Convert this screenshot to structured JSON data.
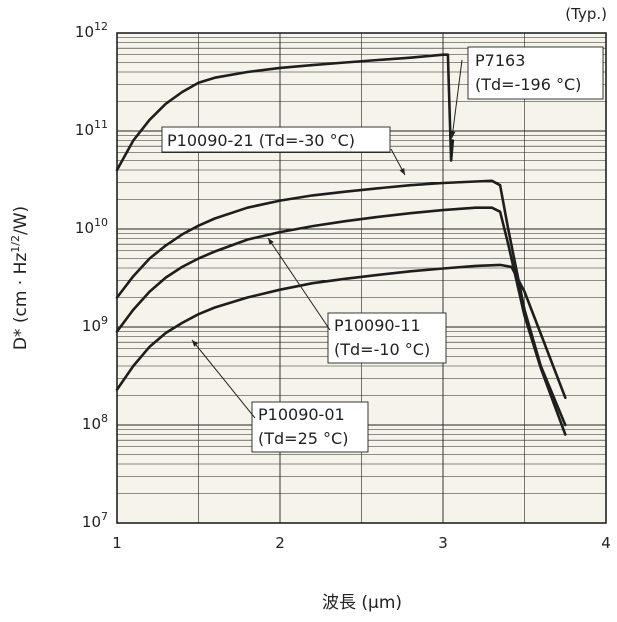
{
  "chart_data": {
    "type": "line",
    "note": "(Typ.)",
    "xlabel": "波長 (μm)",
    "ylabel": "D* (cm · Hz1/2/W)",
    "ylabel_parts": {
      "main": "D* (cm · Hz",
      "sup": "1/2",
      "tail": "/W)"
    },
    "xlim": [
      1,
      4
    ],
    "ylim_exp": [
      7,
      12
    ],
    "y_scale": "log",
    "grid": true,
    "x_ticks": [
      "1",
      "2",
      "3",
      "4"
    ],
    "y_ticks": [
      {
        "base": "10",
        "exp": "12"
      },
      {
        "base": "10",
        "exp": "11"
      },
      {
        "base": "10",
        "exp": "10"
      },
      {
        "base": "10",
        "exp": "9"
      },
      {
        "base": "10",
        "exp": "8"
      },
      {
        "base": "10",
        "exp": "7"
      }
    ],
    "series": [
      {
        "name": "P7163",
        "label_lines": [
          "P7163",
          "(Td=-196 °C)"
        ],
        "points": [
          [
            1.0,
            40000000000.0
          ],
          [
            1.1,
            80000000000.0
          ],
          [
            1.2,
            130000000000.0
          ],
          [
            1.3,
            190000000000.0
          ],
          [
            1.4,
            250000000000.0
          ],
          [
            1.5,
            310000000000.0
          ],
          [
            1.6,
            350000000000.0
          ],
          [
            1.8,
            400000000000.0
          ],
          [
            2.0,
            440000000000.0
          ],
          [
            2.2,
            470000000000.0
          ],
          [
            2.4,
            500000000000.0
          ],
          [
            2.6,
            530000000000.0
          ],
          [
            2.8,
            560000000000.0
          ],
          [
            3.0,
            600000000000.0
          ],
          [
            3.03,
            600000000000.0
          ],
          [
            3.05,
            50000000000.0
          ],
          [
            3.06,
            80000000000.0
          ]
        ]
      },
      {
        "name": "P10090-21 (Td=-30 °C)",
        "label_lines": [
          "P10090-21 (Td=-30 °C)"
        ],
        "points": [
          [
            1.0,
            2000000000.0
          ],
          [
            1.1,
            3300000000.0
          ],
          [
            1.2,
            5000000000.0
          ],
          [
            1.3,
            6800000000.0
          ],
          [
            1.4,
            8800000000.0
          ],
          [
            1.5,
            10800000000.0
          ],
          [
            1.6,
            12800000000.0
          ],
          [
            1.8,
            16500000000.0
          ],
          [
            2.0,
            19500000000.0
          ],
          [
            2.2,
            22000000000.0
          ],
          [
            2.4,
            24000000000.0
          ],
          [
            2.6,
            26000000000.0
          ],
          [
            2.8,
            28000000000.0
          ],
          [
            3.0,
            29500000000.0
          ],
          [
            3.2,
            30500000000.0
          ],
          [
            3.3,
            31000000000.0
          ],
          [
            3.35,
            28000000000.0
          ],
          [
            3.4,
            10000000000.0
          ],
          [
            3.5,
            1500000000.0
          ],
          [
            3.6,
            400000000.0
          ],
          [
            3.75,
            100000000.0
          ]
        ]
      },
      {
        "name": "P10090-11",
        "label_lines": [
          "P10090-11",
          "(Td=-10 °C)"
        ],
        "points": [
          [
            1.0,
            900000000.0
          ],
          [
            1.1,
            1500000000.0
          ],
          [
            1.2,
            2300000000.0
          ],
          [
            1.3,
            3200000000.0
          ],
          [
            1.4,
            4100000000.0
          ],
          [
            1.5,
            5000000000.0
          ],
          [
            1.6,
            5900000000.0
          ],
          [
            1.8,
            7800000000.0
          ],
          [
            2.0,
            9300000000.0
          ],
          [
            2.2,
            10700000000.0
          ],
          [
            2.4,
            12000000000.0
          ],
          [
            2.6,
            13300000000.0
          ],
          [
            2.8,
            14500000000.0
          ],
          [
            3.0,
            15600000000.0
          ],
          [
            3.2,
            16500000000.0
          ],
          [
            3.3,
            16500000000.0
          ],
          [
            3.35,
            15000000000.0
          ],
          [
            3.4,
            7000000000.0
          ],
          [
            3.5,
            1300000000.0
          ],
          [
            3.6,
            380000000.0
          ],
          [
            3.75,
            80000000.0
          ]
        ]
      },
      {
        "name": "P10090-01",
        "label_lines": [
          "P10090-01",
          "(Td=25 °C)"
        ],
        "points": [
          [
            1.0,
            230000000.0
          ],
          [
            1.1,
            400000000.0
          ],
          [
            1.2,
            630000000.0
          ],
          [
            1.3,
            870000000.0
          ],
          [
            1.4,
            1100000000.0
          ],
          [
            1.5,
            1350000000.0
          ],
          [
            1.6,
            1580000000.0
          ],
          [
            1.8,
            2000000000.0
          ],
          [
            2.0,
            2400000000.0
          ],
          [
            2.2,
            2800000000.0
          ],
          [
            2.4,
            3100000000.0
          ],
          [
            2.6,
            3400000000.0
          ],
          [
            2.8,
            3700000000.0
          ],
          [
            3.0,
            3950000000.0
          ],
          [
            3.2,
            4200000000.0
          ],
          [
            3.35,
            4300000000.0
          ],
          [
            3.42,
            4100000000.0
          ],
          [
            3.5,
            2300000000.0
          ],
          [
            3.6,
            850000000.0
          ],
          [
            3.75,
            190000000.0
          ]
        ]
      }
    ]
  },
  "style": {
    "plot_bg": "#f6f4ea",
    "grid_color": "#222222",
    "curve_color": "#1e1e1e",
    "text_color": "#222222"
  }
}
